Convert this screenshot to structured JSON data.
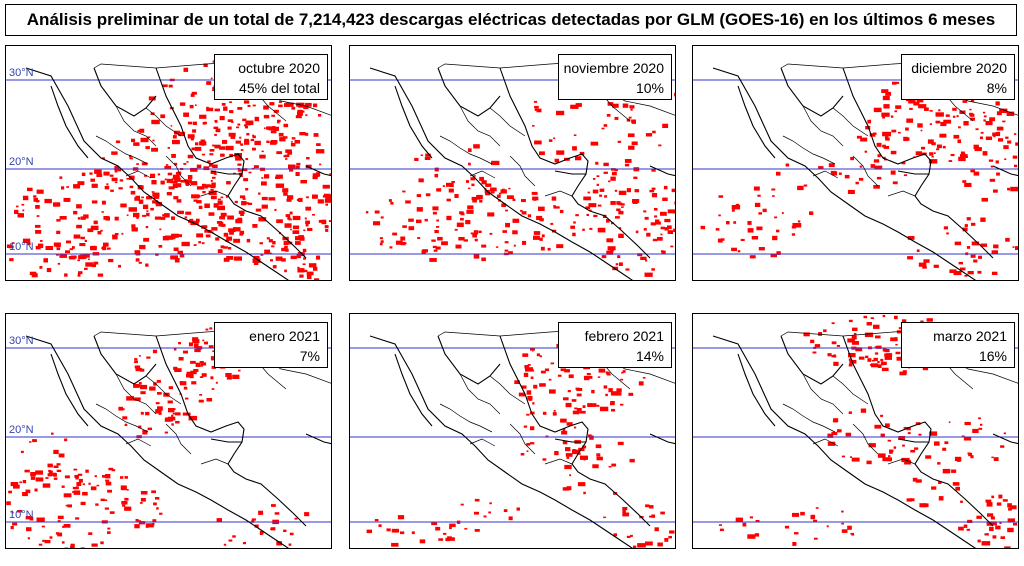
{
  "title": "Análisis preliminar de un total de 7,214,423 descargas eléctricas detectadas por GLM (GOES-16) en los últimos 6 meses",
  "colors": {
    "lightning": "#ff0000",
    "latitude_line": "#3333cc",
    "coast": "#000000",
    "background": "#ffffff"
  },
  "panels": [
    {
      "id": "oct",
      "month": "octubre 2020",
      "share": "45% del total",
      "latitudes": [
        "30°N",
        "20°N",
        "10°N"
      ]
    },
    {
      "id": "nov",
      "month": "noviembre 2020",
      "share": "10%",
      "latitudes": []
    },
    {
      "id": "dec",
      "month": "diciembre 2020",
      "share": "8%",
      "latitudes": []
    },
    {
      "id": "jan",
      "month": "enero 2021",
      "share": "7%",
      "latitudes": [
        "30°N",
        "20°N",
        "10°N"
      ]
    },
    {
      "id": "feb",
      "month": "febrero 2021",
      "share": "14%",
      "latitudes": []
    },
    {
      "id": "mar",
      "month": "marzo 2021",
      "share": "16%",
      "latitudes": []
    }
  ]
}
